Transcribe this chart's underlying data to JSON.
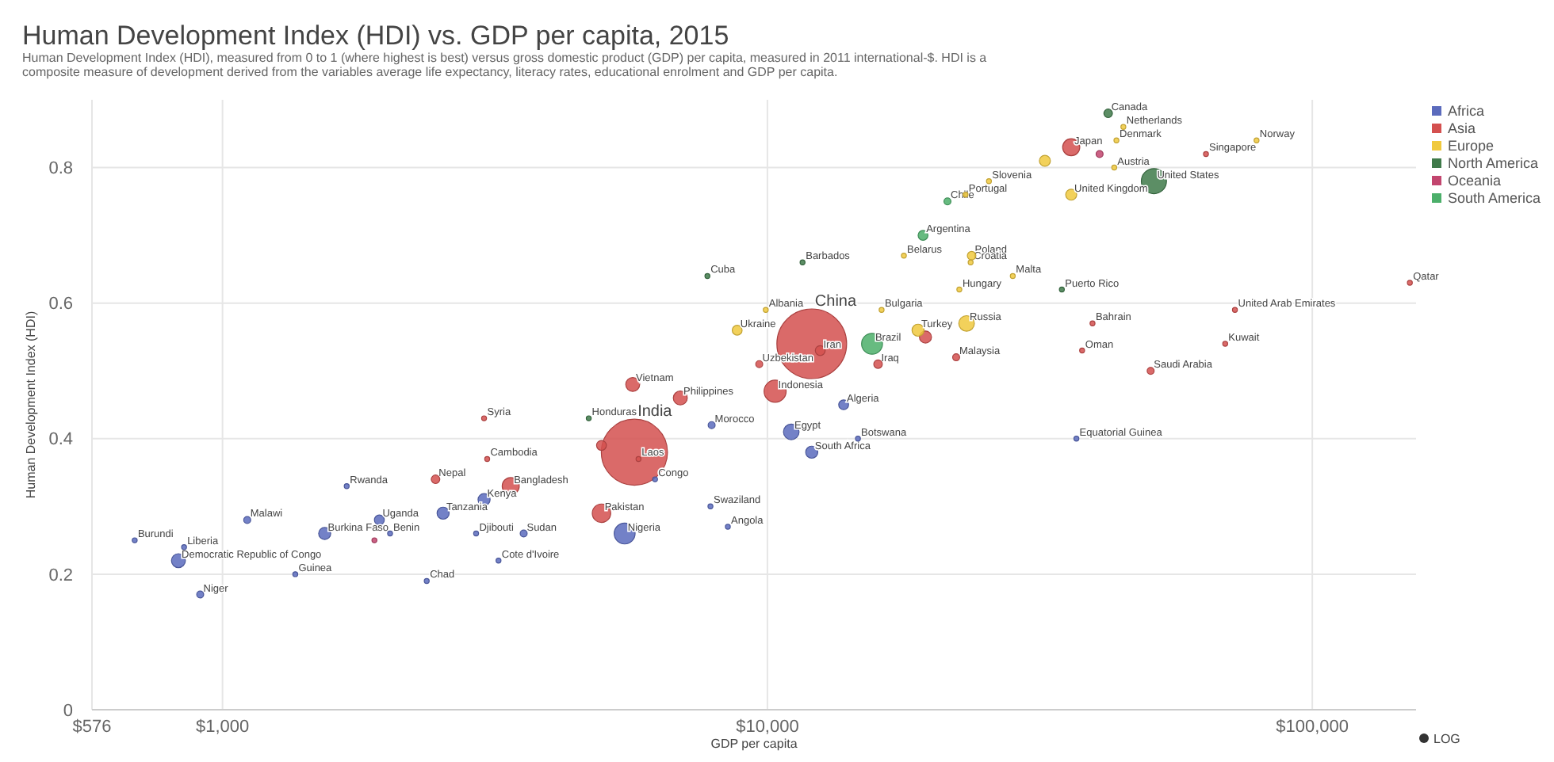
{
  "chart_data": {
    "type": "bubble",
    "title": "Human Development Index (HDI) vs. GDP per capita, 2015",
    "subtitle": "Human Development Index (HDI), measured from 0 to 1 (where highest is best) versus gross domestic product (GDP) per capita, measured in 2011 international-$. HDI is a composite measure of development derived from the variables average life expectancy, literacy rates, educational enrolment and GDP per capita.",
    "xlabel": "GDP per capita",
    "ylabel": "Human Development Index (HDI)",
    "log": "x",
    "xlim": [
      576,
      155000
    ],
    "xticks": [
      {
        "value": 576,
        "label": "$576"
      },
      {
        "value": 1000,
        "label": "$1,000"
      },
      {
        "value": 10000,
        "label": "$10,000"
      },
      {
        "value": 100000,
        "label": "$100,000"
      }
    ],
    "ylim": [
      0,
      0.9
    ],
    "yticks": [
      0,
      0.2,
      0.4,
      0.6,
      0.8
    ],
    "grid": true,
    "legend": "top right",
    "annotations": [
      "LOG"
    ],
    "series": [
      {
        "name": "Africa",
        "color": "#5b6bbd",
        "x": [
          690,
          850,
          830,
          910,
          1110,
          1540,
          1690,
          1360,
          1940,
          2030,
          2540,
          3020,
          2370,
          2920,
          3570,
          3210,
          5470,
          6220,
          7860,
          8460,
          7900,
          11060,
          13800,
          12060,
          14660,
          36900
        ],
        "values": [
          0.25,
          0.24,
          0.22,
          0.17,
          0.28,
          0.26,
          0.33,
          0.2,
          0.28,
          0.26,
          0.29,
          0.31,
          0.19,
          0.26,
          0.26,
          0.22,
          0.26,
          0.34,
          0.3,
          0.27,
          0.42,
          0.41,
          0.45,
          0.38,
          0.4,
          0.4
        ],
        "sizes": [
          0.005,
          0.005,
          0.04,
          0.01,
          0.01,
          0.03,
          0.005,
          0.005,
          0.02,
          0.005,
          0.03,
          0.03,
          0.005,
          0.005,
          0.01,
          0.005,
          0.09,
          0.005,
          0.005,
          0.005,
          0.01,
          0.05,
          0.02,
          0.03,
          0.005,
          0.005
        ],
        "value_labels": [
          "Burundi",
          "Liberia",
          "Democratic Republic of Congo",
          "Niger",
          "Malawi",
          "Burkina Faso",
          "Rwanda",
          "Guinea",
          "Uganda",
          "Benin",
          "Tanzania",
          "Kenya",
          "Chad",
          "Djibouti",
          "Sudan",
          "Cote d'Ivoire",
          "Nigeria",
          "Congo",
          "Swaziland",
          "Angola",
          "Morocco",
          "Egypt",
          "Algeria",
          "South Africa",
          "Botswana",
          "Equatorial Guinea"
        ]
      },
      {
        "name": "Asia",
        "color": "#d4504f",
        "x": [
          2460,
          3380,
          3060,
          3020,
          4960,
          5700,
          5800,
          4960,
          5660,
          6920,
          10330,
          9660,
          12060,
          12500,
          15960,
          19500,
          22200,
          50500,
          36100,
          63800,
          37800,
          39500,
          69200,
          72100,
          151000
        ],
        "values": [
          0.34,
          0.33,
          0.37,
          0.43,
          0.29,
          0.38,
          0.37,
          0.39,
          0.48,
          0.46,
          0.47,
          0.51,
          0.54,
          0.53,
          0.51,
          0.55,
          0.52,
          0.5,
          0.83,
          0.82,
          0.53,
          0.57,
          0.54,
          0.59,
          0.63
        ],
        "sizes": [
          0.015,
          0.06,
          0.005,
          0.005,
          0.07,
          0.9,
          0.005,
          0.02,
          0.04,
          0.04,
          0.1,
          0.01,
          1,
          0.02,
          0.015,
          0.03,
          0.01,
          0.01,
          0.06,
          0.005,
          0.005,
          0.005,
          0.005,
          0.005,
          0.005
        ],
        "value_labels": [
          "Nepal",
          "Bangladesh",
          "Cambodia",
          "Syria",
          "Pakistan",
          "India",
          "Laos",
          null,
          "Vietnam",
          "Philippines",
          "Indonesia",
          "Uzbekistan",
          "China",
          "Iran",
          "Iraq",
          null,
          "Malaysia",
          "Saudi Arabia",
          "Japan",
          "Singapore",
          "Oman",
          "Bahrain",
          "Kuwait",
          "United Arab Emirates",
          "Qatar"
        ]
      },
      {
        "name": "Europe",
        "color": "#f0c93e",
        "x": [
          8800,
          9930,
          16200,
          18900,
          23200,
          22500,
          28200,
          17800,
          23700,
          23600,
          23100,
          25500,
          36100,
          43300,
          43700,
          45000,
          79000,
          32300
        ],
        "values": [
          0.56,
          0.59,
          0.59,
          0.56,
          0.57,
          0.62,
          0.64,
          0.67,
          0.67,
          0.66,
          0.76,
          0.78,
          0.76,
          0.8,
          0.84,
          0.86,
          0.84,
          0.81
        ],
        "sizes": [
          0.02,
          0.005,
          0.005,
          0.03,
          0.05,
          0.005,
          0.005,
          0.005,
          0.015,
          0.005,
          0.005,
          0.005,
          0.025,
          0.005,
          0.005,
          0.005,
          0.005,
          0.025
        ],
        "value_labels": [
          "Ukraine",
          "Albania",
          "Bulgaria",
          "Turkey",
          "Russia",
          "Hungary",
          "Malta",
          "Belarus",
          "Poland",
          "Croatia",
          "Portugal",
          "Slovenia",
          "United Kingdom",
          "Austria",
          "Denmark",
          "Netherlands",
          "Norway",
          null
        ]
      },
      {
        "name": "North America",
        "color": "#3f7a4a",
        "x": [
          7760,
          11600,
          4700,
          34700,
          42200,
          51200
        ],
        "values": [
          0.64,
          0.66,
          0.43,
          0.62,
          0.88,
          0.78
        ],
        "sizes": [
          0.005,
          0.005,
          0.005,
          0.005,
          0.015,
          0.13
        ],
        "value_labels": [
          "Cuba",
          "Barbados",
          "Honduras",
          "Puerto Rico",
          "Canada",
          "United States"
        ]
      },
      {
        "name": "Oceania",
        "color": "#c2456e",
        "x": [
          40700,
          1900
        ],
        "values": [
          0.82,
          0.25
        ],
        "sizes": [
          0.01,
          0.005
        ]
      },
      {
        "name": "South America",
        "color": "#4caf6a",
        "x": [
          15560,
          19300,
          21400
        ],
        "values": [
          0.54,
          0.7,
          0.75
        ],
        "sizes": [
          0.09,
          0.02,
          0.01
        ],
        "value_labels": [
          "Brazil",
          "Argentina",
          "Chile"
        ]
      }
    ]
  }
}
